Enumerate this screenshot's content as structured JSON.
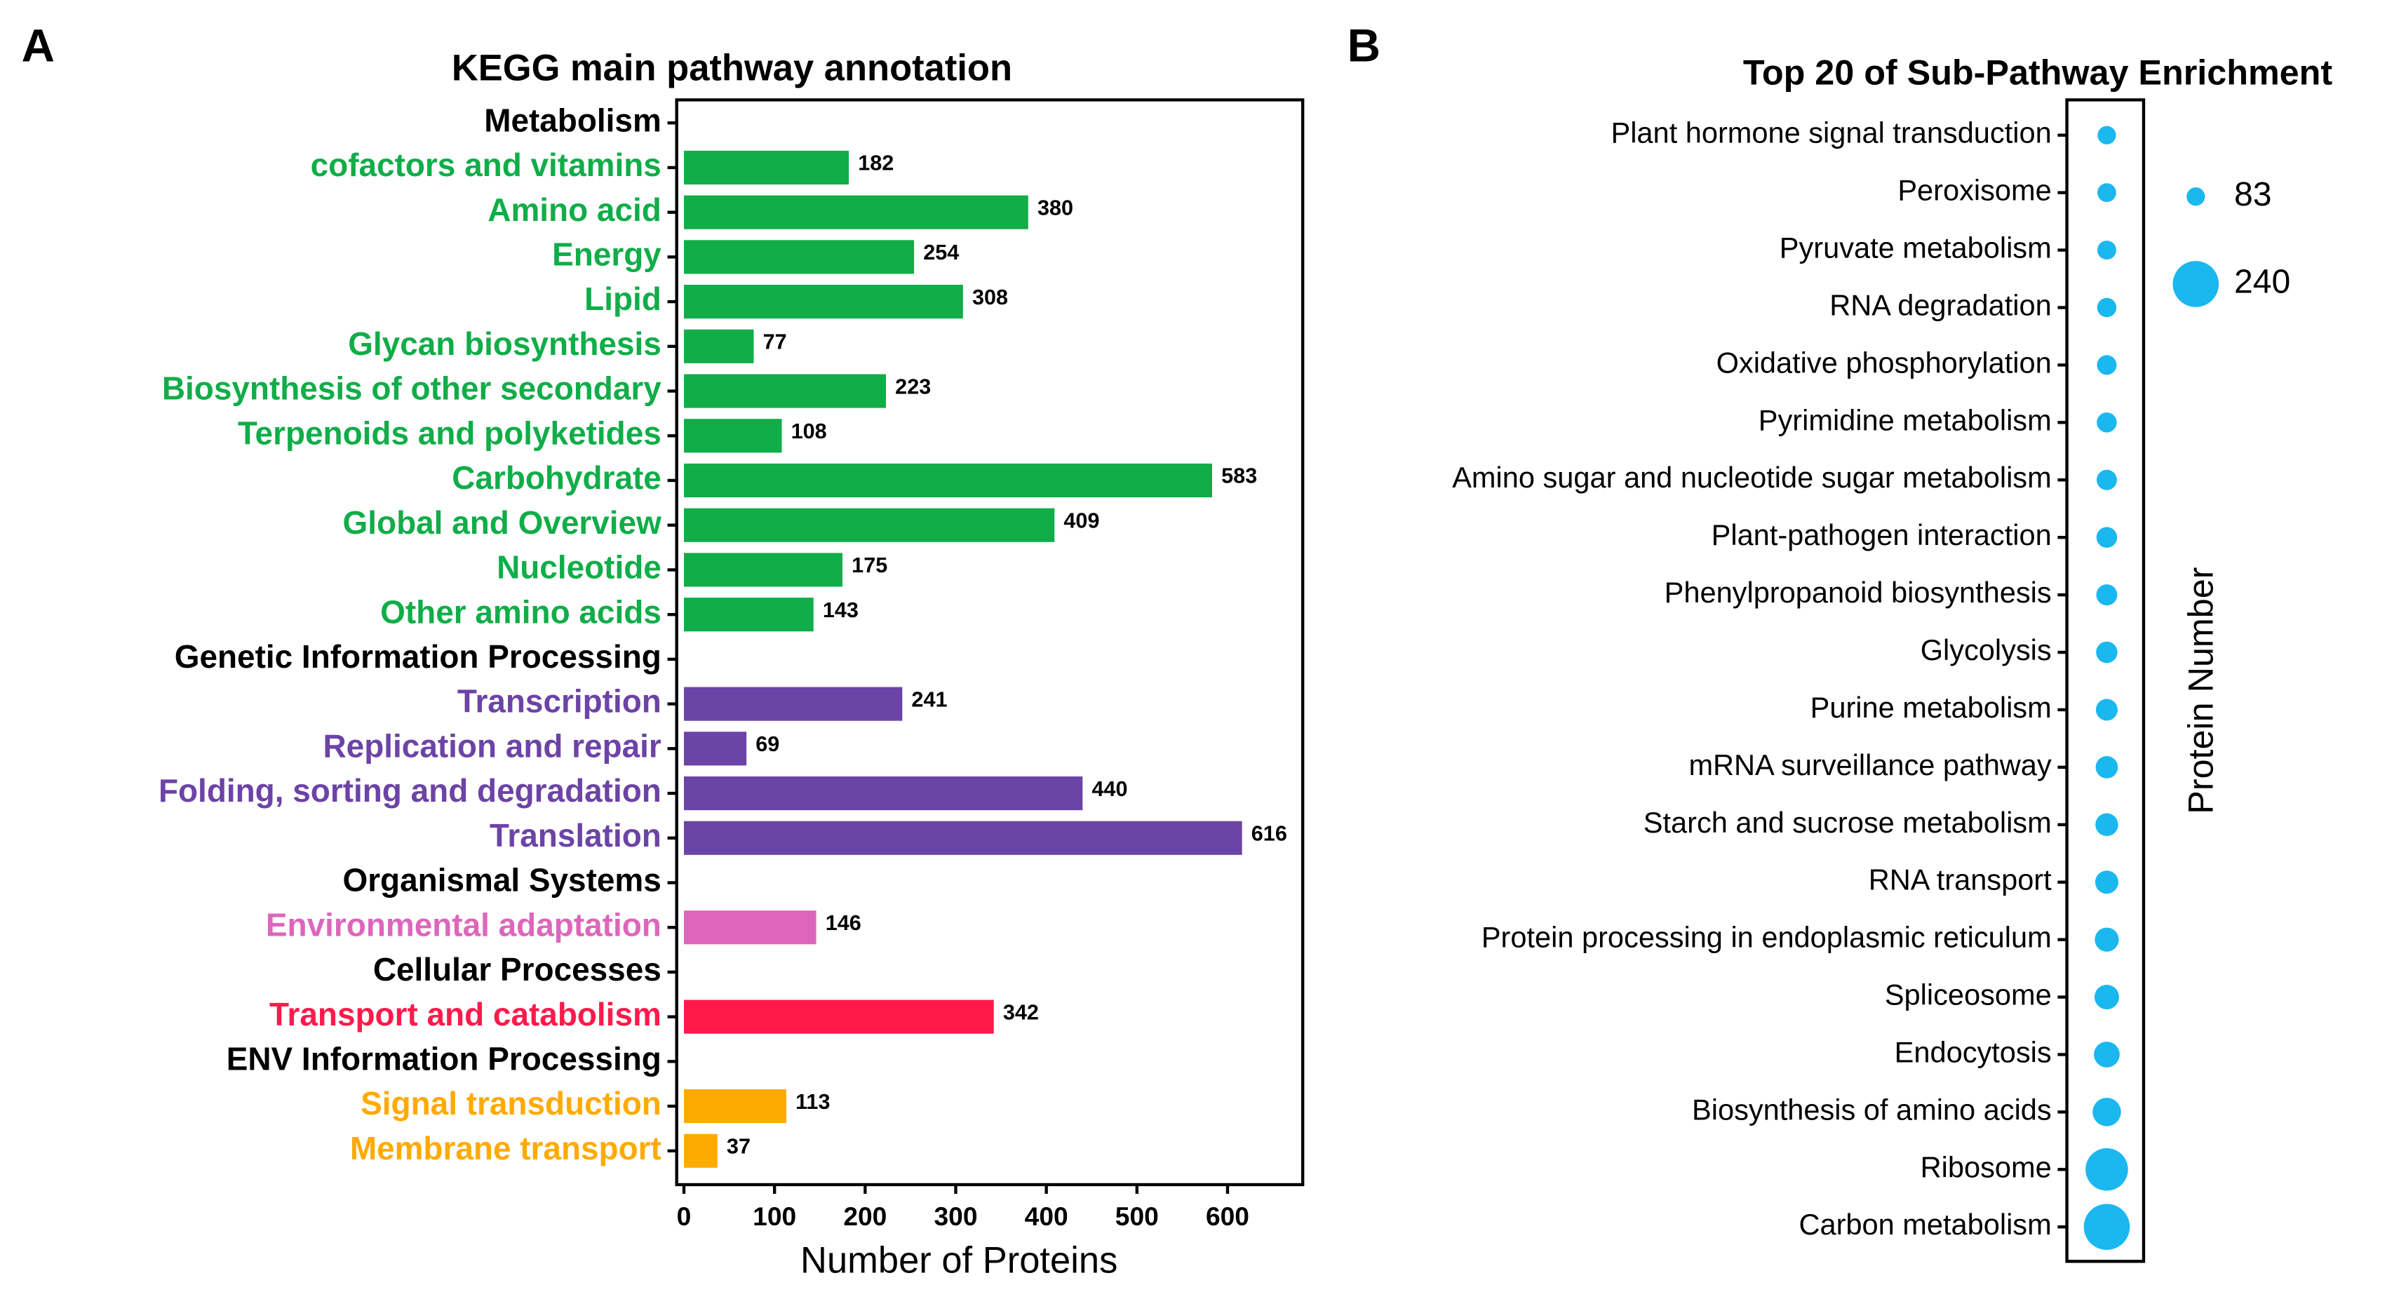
{
  "panels": [
    "A",
    "B"
  ],
  "chart_data": [
    {
      "type": "bar",
      "orientation": "horizontal",
      "title": "KEGG main pathway annotation",
      "x_label": "Number of Proteins",
      "categories": [
        "Metabolism",
        "cofactors and vitamins",
        "Amino acid",
        "Energy",
        "Lipid",
        "Glycan biosynthesis",
        "Biosynthesis of other secondary",
        "Terpenoids and polyketides",
        "Carbohydrate",
        "Global and Overview",
        "Nucleotide",
        "Other amino acids",
        "Genetic Information Processing",
        "Transcription",
        "Replication and repair",
        "Folding, sorting and degradation",
        "Translation",
        "Organismal Systems",
        "Environmental adaptation",
        "Cellular Processes",
        "Transport and catabolism",
        "ENV Information Processing",
        "Signal transduction",
        "Membrane transport"
      ],
      "values": [
        null,
        182,
        380,
        254,
        308,
        77,
        223,
        108,
        583,
        409,
        175,
        143,
        null,
        241,
        69,
        440,
        616,
        null,
        146,
        null,
        342,
        null,
        113,
        37
      ],
      "colors": [
        "#000000",
        "#10ad48",
        "#10ad48",
        "#10ad48",
        "#10ad48",
        "#10ad48",
        "#10ad48",
        "#10ad48",
        "#10ad48",
        "#10ad48",
        "#10ad48",
        "#10ad48",
        "#000000",
        "#6c43a6",
        "#6c43a6",
        "#6c43a6",
        "#6c43a6",
        "#000000",
        "#dd66bb",
        "#000000",
        "#ff1a4b",
        "#000000",
        "#ffaa00",
        "#ffaa00"
      ],
      "xlim": [
        -8,
        683
      ],
      "xticks": [
        0,
        100,
        200,
        300,
        400,
        500,
        600
      ]
    },
    {
      "type": "dot",
      "title": "Top 20 of Sub-Pathway Enrichment",
      "size_label": "Protein Number",
      "categories": [
        "Plant hormone signal transduction",
        "Peroxisome",
        "Pyruvate metabolism",
        "RNA degradation",
        "Oxidative phosphorylation",
        "Pyrimidine metabolism",
        "Amino sugar and nucleotide sugar metabolism",
        "Plant-pathogen interaction",
        "Phenylpropanoid biosynthesis",
        "Glycolysis",
        "Purine metabolism",
        "mRNA surveillance pathway",
        "Starch and sucrose metabolism",
        "RNA transport",
        "Protein processing in endoplasmic reticulum",
        "Spliceosome",
        "Endocytosis",
        "Biosynthesis of amino acids",
        "Ribosome",
        "Carbon metabolism"
      ],
      "values": [
        83,
        85,
        86,
        88,
        90,
        92,
        94,
        96,
        98,
        100,
        102,
        105,
        108,
        110,
        115,
        118,
        125,
        140,
        220,
        240
      ],
      "color": "#1ab8ef",
      "size_legend": [
        83,
        240
      ]
    }
  ]
}
